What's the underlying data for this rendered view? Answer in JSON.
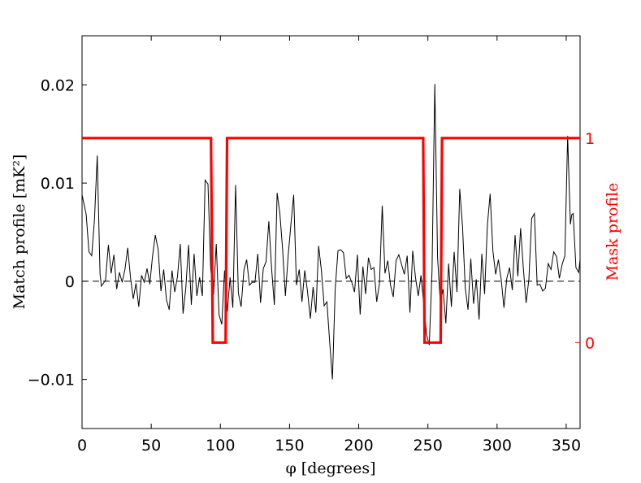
{
  "chart_data": {
    "type": "line",
    "xlabel": "φ [degrees]",
    "ylabel": "Match profile [mK²]",
    "ylabel_right": "Mask profile",
    "xlim": [
      0,
      360
    ],
    "ylim": [
      -0.015,
      0.025
    ],
    "ylim_right": [
      -0.42,
      1.5
    ],
    "x_ticks": [
      {
        "value": 0,
        "label": "0"
      },
      {
        "value": 50,
        "label": "50"
      },
      {
        "value": 100,
        "label": "100"
      },
      {
        "value": 150,
        "label": "150"
      },
      {
        "value": 200,
        "label": "200"
      },
      {
        "value": 250,
        "label": "250"
      },
      {
        "value": 300,
        "label": "300"
      },
      {
        "value": 350,
        "label": "350"
      }
    ],
    "y_ticks": [
      {
        "value": -0.01,
        "label": "−0.01"
      },
      {
        "value": 0,
        "label": "0"
      },
      {
        "value": 0.01,
        "label": "0.01"
      },
      {
        "value": 0.02,
        "label": "0.02"
      }
    ],
    "y_ticks_right": [
      {
        "value": 0,
        "label": "0"
      },
      {
        "value": 1,
        "label": "1"
      }
    ],
    "grid": false,
    "colors": {
      "match": "#000000",
      "mask": "#ff0000",
      "zero_line": "#000000"
    },
    "series": [
      {
        "axis": "left",
        "x": [
          0,
          3,
          5,
          7,
          9,
          11,
          13,
          14,
          17,
          19,
          21,
          23,
          25,
          27,
          29,
          31,
          33,
          35,
          37,
          39,
          41,
          43,
          45,
          47,
          49,
          51,
          53,
          55,
          57,
          59,
          61,
          63,
          65,
          67,
          69,
          71,
          73,
          75,
          77,
          79,
          81,
          83,
          85,
          87,
          89,
          91,
          93,
          95,
          97,
          99,
          101,
          103,
          105,
          107,
          109,
          111,
          113,
          115,
          117,
          119,
          121,
          123,
          125,
          127,
          129,
          131,
          133,
          135,
          137,
          139,
          141,
          143,
          145,
          147,
          149,
          151,
          153,
          155,
          157,
          159,
          161,
          163,
          165,
          167,
          169,
          171,
          173,
          175,
          177,
          179,
          181,
          183,
          185,
          187,
          189,
          191,
          193,
          195,
          197,
          199,
          201,
          203,
          205,
          207,
          209,
          211,
          213,
          215,
          217,
          219,
          221,
          223,
          225,
          227,
          229,
          231,
          233,
          235,
          237,
          239,
          241,
          243,
          245,
          247,
          249,
          251,
          253,
          255,
          257,
          259,
          261,
          263,
          265,
          267,
          269,
          271,
          273,
          275,
          277,
          279,
          281,
          283,
          285,
          287,
          289,
          291,
          293,
          295,
          297,
          299,
          301,
          303,
          305,
          307,
          309,
          311,
          313,
          315,
          317,
          319,
          321,
          323,
          325,
          327,
          329,
          331,
          333,
          335,
          337,
          339,
          341,
          343,
          345,
          347,
          349,
          351,
          353,
          354,
          355,
          357,
          359,
          360
        ],
        "values": [
          0.0088,
          0.0068,
          0.003,
          0.0026,
          0.0063,
          0.0128,
          0.0008,
          -0.0005,
          0.0001,
          0.0037,
          0.0008,
          0.0027,
          -0.0008,
          0.0009,
          -0.0001,
          0.0012,
          0.0034,
          0.0004,
          -0.0018,
          -0.0002,
          -0.0026,
          0.0006,
          -0.0001,
          0.0013,
          -0.0003,
          0.0026,
          0.0047,
          0.0032,
          -0.001,
          0.0012,
          -0.0019,
          -0.0029,
          0.0011,
          -0.0011,
          0.0005,
          0.0038,
          -0.0033,
          -0.0007,
          0.0037,
          -0.0024,
          0.0028,
          -0.0015,
          0.0004,
          -0.0015,
          0.0103,
          0.0099,
          0.0012,
          -0.0014,
          0.0038,
          -0.0034,
          -0.0044,
          0.0011,
          -0.0031,
          0.0004,
          -0.0027,
          0.0098,
          -0.0012,
          -0.0026,
          0.0011,
          0.0022,
          -0.0004,
          -0.0001,
          -0.0001,
          0.0028,
          -0.0022,
          0.0013,
          0.002,
          0.0061,
          0.0013,
          -0.0024,
          0.009,
          0.0069,
          0.0032,
          -0.0015,
          0.0026,
          0.0058,
          0.0088,
          -0.0004,
          0.0012,
          -0.0021,
          0.0011,
          -0.0011,
          -0.0038,
          -0.0006,
          -0.0032,
          0.0036,
          0.0011,
          -0.0025,
          -0.0021,
          -0.0062,
          -0.01,
          -0.0008,
          0.0031,
          0.0032,
          0.0029,
          0.0003,
          0.0006,
          -0.0001,
          -0.0011,
          0.0027,
          -0.0034,
          0.0015,
          -0.0013,
          0.0024,
          0.0012,
          0.0014,
          -0.0021,
          -0.0002,
          0.0077,
          0.0008,
          0.0021,
          -0.0004,
          -0.0016,
          0.0021,
          0.0027,
          0.0017,
          0.0007,
          0.0026,
          -0.0032,
          0.0031,
          0.0004,
          -0.0015,
          0.0006,
          -0.0023,
          -0.0054,
          -0.0065,
          0.0011,
          0.0201,
          0.0024,
          -0.0022,
          -0.0008,
          -0.0043,
          0.0018,
          -0.0026,
          0.003,
          -0.0011,
          0.0094,
          0.0056,
          -0.0007,
          -0.0029,
          0.0023,
          -0.0023,
          0.0002,
          -0.0039,
          0.0028,
          -0.0013,
          0.0057,
          0.0089,
          0.0031,
          0.0007,
          0.0022,
          0.0002,
          -0.0027,
          0.0003,
          0.0014,
          -0.0009,
          0.0047,
          0.0005,
          0.0054,
          0.0013,
          -0.0022,
          0.0002,
          0.0064,
          0.0069,
          -0.0004,
          -0.0003,
          -0.001,
          -0.0007,
          0.0018,
          0.0012,
          0.003,
          0.0025,
          0.0003,
          0.0017,
          0.0026,
          0.0148,
          0.0058,
          0.0068,
          0.0069,
          0.0014,
          0.0009,
          0.0022
        ]
      },
      {
        "axis": "right",
        "x": [
          0,
          93.2,
          94.5,
          103.8,
          104.8,
          246.6,
          247.6,
          259.2,
          260.2,
          360
        ],
        "values": [
          1,
          1,
          0,
          0,
          1,
          1,
          0,
          0,
          1,
          1
        ]
      }
    ]
  }
}
